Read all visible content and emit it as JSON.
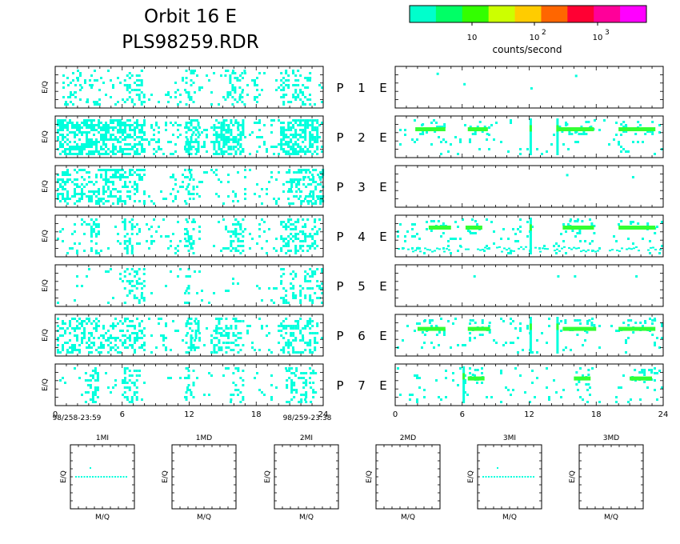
{
  "header": {
    "title_line1": "Orbit 16 E",
    "title_line2": "PLS98259.RDR"
  },
  "colorbar": {
    "label": "counts/second",
    "tick_labels": [
      "10",
      "10",
      "10"
    ],
    "tick_exponents": [
      "",
      "2",
      "3"
    ],
    "colors": [
      "#00ffcc",
      "#00ff66",
      "#33ff00",
      "#ccff00",
      "#ffcc00",
      "#ff6600",
      "#ff0033",
      "#ff0099",
      "#ff00ff"
    ]
  },
  "panels": {
    "ylabel": "E/Q",
    "rows": [
      {
        "p": "P",
        "n": "1",
        "e": "E"
      },
      {
        "p": "P",
        "n": "2",
        "e": "E"
      },
      {
        "p": "P",
        "n": "3",
        "e": "E"
      },
      {
        "p": "P",
        "n": "4",
        "e": "E"
      },
      {
        "p": "P",
        "n": "5",
        "e": "E"
      },
      {
        "p": "P",
        "n": "6",
        "e": "E"
      },
      {
        "p": "P",
        "n": "7",
        "e": "E"
      }
    ],
    "x_ticks": [
      "0",
      "6",
      "12",
      "18",
      "24"
    ],
    "start_label": "98/258-23:59",
    "end_label": "98/259-23:38"
  },
  "bottom_panels": [
    {
      "title": "1MI",
      "xlabel": "M/Q",
      "ylabel": "E/Q"
    },
    {
      "title": "1MD",
      "xlabel": "M/Q",
      "ylabel": "E/Q"
    },
    {
      "title": "2MI",
      "xlabel": "M/Q",
      "ylabel": "E/Q"
    },
    {
      "title": "2MD",
      "xlabel": "M/Q",
      "ylabel": "E/Q"
    },
    {
      "title": "3MI",
      "xlabel": "M/Q",
      "ylabel": "E/Q"
    },
    {
      "title": "3MD",
      "xlabel": "M/Q",
      "ylabel": "E/Q"
    }
  ],
  "chart_data": {
    "type": "heatmap",
    "x_range_hours": [
      0,
      24
    ],
    "colorscale": "log counts/second",
    "left_column": [
      {
        "panel": "P 1",
        "density": 0.12,
        "activity": [
          [
            0.5,
            4,
            0.3
          ],
          [
            6,
            8,
            0.5
          ],
          [
            11.5,
            12.5,
            0.8
          ],
          [
            15,
            17,
            0.7
          ],
          [
            20,
            23,
            0.7
          ]
        ]
      },
      {
        "panel": "P 2",
        "density": 0.32,
        "activity": [
          [
            0,
            8,
            0.8
          ],
          [
            11.5,
            13,
            0.9
          ],
          [
            14,
            17,
            0.9
          ],
          [
            20,
            23.5,
            0.9
          ]
        ]
      },
      {
        "panel": "P 3",
        "density": 0.18,
        "activity": [
          [
            0,
            8,
            0.6
          ],
          [
            11.5,
            12.5,
            0.8
          ],
          [
            20.5,
            24,
            0.9
          ]
        ]
      },
      {
        "panel": "P 4",
        "density": 0.14,
        "activity": [
          [
            3,
            4,
            0.9
          ],
          [
            6,
            7,
            0.9
          ],
          [
            11.5,
            12.5,
            0.9
          ],
          [
            15.5,
            17,
            0.8
          ],
          [
            20,
            23.5,
            0.9
          ]
        ]
      },
      {
        "panel": "P 5",
        "density": 0.07,
        "activity": [
          [
            6,
            8,
            0.8
          ],
          [
            11.5,
            12,
            0.7
          ],
          [
            20,
            24,
            0.7
          ]
        ]
      },
      {
        "panel": "P 6",
        "density": 0.12,
        "activity": [
          [
            0,
            8,
            0.7
          ],
          [
            11.5,
            13,
            0.9
          ],
          [
            14,
            17,
            0.8
          ],
          [
            20,
            23.5,
            0.9
          ]
        ]
      },
      {
        "panel": "P 7",
        "density": 0.08,
        "activity": [
          [
            2.5,
            4,
            0.9
          ],
          [
            6,
            7.5,
            0.9
          ],
          [
            11.5,
            12.5,
            0.6
          ],
          [
            15.5,
            17,
            0.7
          ],
          [
            20.5,
            23.5,
            0.9
          ]
        ]
      }
    ],
    "right_column": [
      {
        "panel": "P 1",
        "density": 0.0,
        "bands": [],
        "sparse": [
          [
            3.7,
            0.15
          ],
          [
            6.1,
            0.4
          ],
          [
            12.1,
            0.5
          ],
          [
            16.1,
            0.2
          ]
        ]
      },
      {
        "panel": "P 2",
        "density": 0.05,
        "bands": [
          [
            1.8,
            4.5,
            0.27
          ],
          [
            6.5,
            8.3,
            0.27
          ],
          [
            14.5,
            17.8,
            0.27
          ],
          [
            20,
            23.3,
            0.27
          ]
        ],
        "spikes": [
          12.1,
          14.5
        ],
        "sparse": []
      },
      {
        "panel": "P 3",
        "density": 0.0,
        "bands": [],
        "sparse": [
          [
            15.3,
            0.2
          ],
          [
            21.2,
            0.25
          ]
        ]
      },
      {
        "panel": "P 4",
        "density": 0.05,
        "bands": [
          [
            3,
            5,
            0.25
          ],
          [
            6.3,
            7.8,
            0.25
          ],
          [
            15,
            17.8,
            0.25
          ],
          [
            20,
            23.3,
            0.25
          ]
        ],
        "spikes": [
          12.1
        ],
        "baseline": 0.8,
        "sparse": []
      },
      {
        "panel": "P 5",
        "density": 0.0,
        "bands": [],
        "sparse": [
          [
            7,
            0.25
          ],
          [
            14.5,
            0.25
          ],
          [
            16,
            0.25
          ],
          [
            21.5,
            0.25
          ]
        ]
      },
      {
        "panel": "P 6",
        "density": 0.05,
        "bands": [
          [
            2,
            4.5,
            0.3
          ],
          [
            6.5,
            8.5,
            0.3
          ],
          [
            15,
            18,
            0.3
          ],
          [
            20,
            23.3,
            0.3
          ]
        ],
        "spikes": [
          12.1,
          14.5
        ],
        "sparse": []
      },
      {
        "panel": "P 7",
        "density": 0.04,
        "bands": [
          [
            6.5,
            8,
            0.3
          ],
          [
            16,
            17.5,
            0.3
          ],
          [
            21,
            23,
            0.3
          ]
        ],
        "spikes": [
          6.1
        ],
        "sparse": []
      }
    ],
    "bottom_lines": [
      {
        "panel": "1MI",
        "has_line": true
      },
      {
        "panel": "1MD",
        "has_line": false
      },
      {
        "panel": "2MI",
        "has_line": false
      },
      {
        "panel": "2MD",
        "has_line": false
      },
      {
        "panel": "3MI",
        "has_line": true
      },
      {
        "panel": "3MD",
        "has_line": false
      }
    ]
  }
}
